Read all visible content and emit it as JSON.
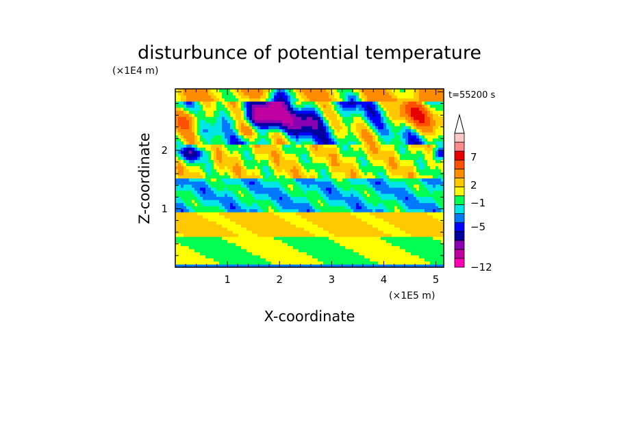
{
  "chart_data": {
    "type": "heatmap",
    "title": "disturbunce of potential temperature",
    "xlabel": "X-coordinate",
    "ylabel": "Z-coordinate",
    "x_scale_label": "(×1E5 m)",
    "y_scale_label": "(×1E4 m)",
    "time_label": "t=55200 s",
    "xlim": [
      0,
      5.15
    ],
    "ylim": [
      0,
      3.05
    ],
    "x_ticks": [
      1,
      2,
      3,
      4,
      5
    ],
    "y_ticks": [
      1,
      2
    ],
    "grid": false,
    "colorbar": {
      "placement": "right",
      "tick_labels": [
        "7",
        "2",
        "−1",
        "−5",
        "−12"
      ],
      "colors": [
        "#ff00b4",
        "#c000a0",
        "#8c00b4",
        "#0000a0",
        "#0000ff",
        "#0078ff",
        "#00e6e6",
        "#00ff50",
        "#ffff00",
        "#ffc800",
        "#ff8c00",
        "#ff5000",
        "#e60000",
        "#ff8c8c",
        "#ffc8c8"
      ],
      "extend_max": true
    },
    "field_description_bands": [
      {
        "z_range": [
          0.0,
          0.05
        ],
        "dominant": "green"
      },
      {
        "z_range": [
          0.05,
          0.45
        ],
        "dominant": "yellow"
      },
      {
        "z_range": [
          0.45,
          0.95
        ],
        "dominant": "orange-yellow"
      },
      {
        "z_range": [
          0.95,
          1.6
        ],
        "dominant": "green"
      },
      {
        "z_range": [
          1.6,
          2.1
        ],
        "dominant": "yellow-orange"
      },
      {
        "z_range": [
          2.1,
          2.8
        ],
        "dominant": "blue-green"
      },
      {
        "z_range": [
          2.8,
          3.05
        ],
        "dominant": "orange-yellow"
      }
    ]
  }
}
